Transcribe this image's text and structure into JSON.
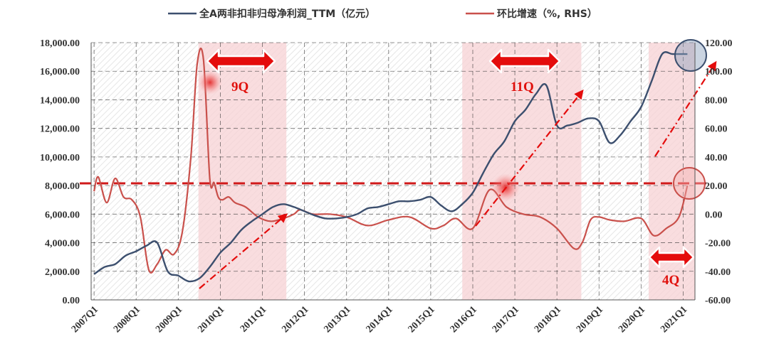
{
  "chart_data": {
    "type": "line",
    "colors": {
      "profit": "#3c4f6e",
      "growth": "#c9504b",
      "shade": "#f7d2d4",
      "accent": "#e40c0c"
    },
    "legend": {
      "profit_label": "全A两非扣非归母净利润_TTM（亿元）",
      "growth_label": "环比增速（%, RHS）",
      "placement": "top"
    },
    "x_ticks": [
      "2007Q1",
      "2008Q1",
      "2009Q1",
      "2010Q1",
      "2011Q1",
      "2012Q1",
      "2013Q1",
      "2014Q1",
      "2015Q1",
      "2016Q1",
      "2017Q1",
      "2018Q1",
      "2019Q1",
      "2020Q1",
      "2021Q1"
    ],
    "x_range": [
      2006.93,
      2021.28
    ],
    "y_left": {
      "min": 0,
      "max": 18000,
      "step": 2000,
      "tick_labels": [
        "0.00",
        "2,000.00",
        "4,000.00",
        "6,000.00",
        "8,000.00",
        "10,000.00",
        "12,000.00",
        "14,000.00",
        "16,000.00",
        "18,000.00"
      ]
    },
    "y_right": {
      "min": -60,
      "max": 120,
      "step": 20,
      "tick_labels": [
        "-60.00",
        "-40.00",
        "-20.00",
        "0.00",
        "20.00",
        "40.00",
        "60.00",
        "80.00",
        "100.00",
        "120.00"
      ]
    },
    "grid": true,
    "series": [
      {
        "name": "全A两非扣非归母净利润_TTM（亿元）",
        "axis": "left",
        "x": [
          2007.0,
          2007.25,
          2007.5,
          2007.75,
          2008.0,
          2008.25,
          2008.5,
          2008.75,
          2009.0,
          2009.25,
          2009.5,
          2009.75,
          2010.0,
          2010.25,
          2010.5,
          2010.75,
          2011.0,
          2011.25,
          2011.5,
          2011.75,
          2012.0,
          2012.25,
          2012.5,
          2012.75,
          2013.0,
          2013.25,
          2013.5,
          2013.75,
          2014.0,
          2014.25,
          2014.5,
          2014.75,
          2015.0,
          2015.25,
          2015.5,
          2015.75,
          2016.0,
          2016.25,
          2016.5,
          2016.75,
          2017.0,
          2017.25,
          2017.5,
          2017.75,
          2018.0,
          2018.25,
          2018.5,
          2018.75,
          2019.0,
          2019.25,
          2019.5,
          2019.75,
          2020.0,
          2020.25,
          2020.5,
          2020.75,
          2021.0,
          2021.1
        ],
        "values": [
          1800,
          2300,
          2500,
          3100,
          3400,
          3800,
          4000,
          2000,
          1700,
          1300,
          1500,
          2300,
          3300,
          4000,
          4900,
          5500,
          6000,
          6500,
          6700,
          6500,
          6200,
          5900,
          5700,
          5700,
          5800,
          6000,
          6400,
          6500,
          6700,
          6900,
          6900,
          7000,
          7200,
          6600,
          6200,
          6700,
          7500,
          8900,
          10200,
          11100,
          12500,
          13300,
          14400,
          15000,
          12200,
          12200,
          12400,
          12700,
          12500,
          11000,
          11500,
          12500,
          13500,
          15300,
          17200,
          17200,
          17200,
          17200
        ]
      },
      {
        "name": "环比增速（%, RHS）",
        "axis": "right",
        "x": [
          2007.0,
          2007.1,
          2007.3,
          2007.5,
          2007.7,
          2007.9,
          2008.1,
          2008.3,
          2008.5,
          2008.7,
          2008.9,
          2009.1,
          2009.3,
          2009.45,
          2009.6,
          2009.75,
          2009.85,
          2009.95,
          2010.05,
          2010.2,
          2010.35,
          2010.6,
          2010.9,
          2011.2,
          2011.5,
          2011.75,
          2011.9,
          2012.2,
          2012.6,
          2013.0,
          2013.5,
          2014.0,
          2014.5,
          2015.0,
          2015.3,
          2015.6,
          2016.0,
          2016.4,
          2016.8,
          2017.2,
          2017.6,
          2018.0,
          2018.4,
          2018.6,
          2018.8,
          2019.0,
          2019.25,
          2019.6,
          2020.0,
          2020.3,
          2020.6,
          2020.9,
          2021.1
        ],
        "values": [
          16,
          26,
          8,
          25,
          12,
          10,
          -2,
          -39,
          -35,
          -25,
          -28,
          -12,
          40,
          105,
          108,
          25,
          22,
          12,
          10,
          12,
          8,
          5,
          -2,
          -5,
          -3,
          0,
          3,
          0,
          0,
          -2,
          -8,
          -4,
          -2,
          -10,
          -8,
          -3,
          -10,
          17,
          5,
          0,
          -2,
          -10,
          -24,
          -20,
          -4,
          -2,
          -4,
          -5,
          -3,
          -15,
          -10,
          -2,
          20
        ]
      }
    ],
    "annotations": [
      {
        "label": "9Q",
        "kind": "double-arrow"
      },
      {
        "label": "11Q",
        "kind": "double-arrow"
      },
      {
        "label": "4Q",
        "kind": "double-arrow"
      }
    ]
  }
}
